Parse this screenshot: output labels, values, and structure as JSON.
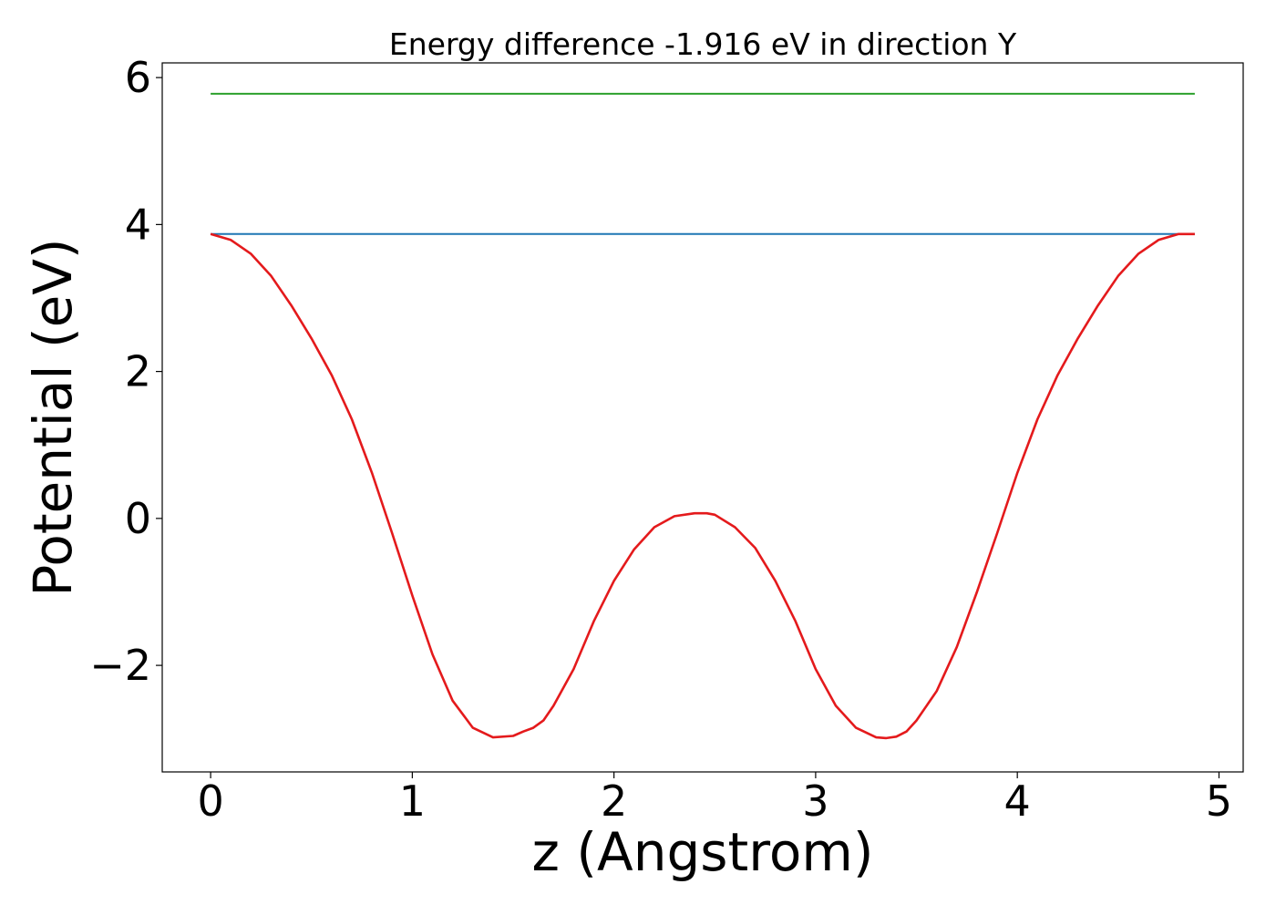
{
  "chart_data": {
    "type": "line",
    "title": "Energy difference -1.916 eV in direction Y",
    "xlabel": "z (Angstrom)",
    "ylabel": "Potential (eV)",
    "xlim": [
      -0.24,
      5.12
    ],
    "ylim": [
      -3.45,
      6.2
    ],
    "x_ticks": [
      0,
      1,
      2,
      3,
      4,
      5
    ],
    "x_tick_labels": [
      "0",
      "1",
      "2",
      "3",
      "4",
      "5"
    ],
    "y_ticks": [
      -2,
      0,
      2,
      4,
      6
    ],
    "y_tick_labels": [
      "−2",
      "0",
      "2",
      "4",
      "6"
    ],
    "grid": false,
    "legend": "none",
    "series": [
      {
        "color": "#e41a1c",
        "x": [
          0,
          0.1,
          0.2,
          0.3,
          0.4,
          0.5,
          0.6,
          0.7,
          0.8,
          0.9,
          1.0,
          1.1,
          1.2,
          1.3,
          1.4,
          1.5,
          1.55,
          1.6,
          1.65,
          1.7,
          1.8,
          1.9,
          2.0,
          2.1,
          2.2,
          2.3,
          2.4,
          2.46,
          2.5,
          2.6,
          2.7,
          2.8,
          2.9,
          3.0,
          3.1,
          3.2,
          3.3,
          3.35,
          3.4,
          3.45,
          3.5,
          3.6,
          3.7,
          3.8,
          3.9,
          4.0,
          4.1,
          4.2,
          4.3,
          4.4,
          4.5,
          4.6,
          4.7,
          4.8,
          4.88
        ],
        "y": [
          3.87,
          3.79,
          3.6,
          3.3,
          2.9,
          2.45,
          1.95,
          1.35,
          0.62,
          -0.2,
          -1.05,
          -1.85,
          -2.48,
          -2.85,
          -2.98,
          -2.96,
          -2.9,
          -2.85,
          -2.75,
          -2.55,
          -2.05,
          -1.4,
          -0.85,
          -0.42,
          -0.12,
          0.03,
          0.07,
          0.07,
          0.05,
          -0.12,
          -0.4,
          -0.85,
          -1.4,
          -2.05,
          -2.55,
          -2.85,
          -2.98,
          -2.99,
          -2.97,
          -2.9,
          -2.75,
          -2.35,
          -1.75,
          -1.0,
          -0.2,
          0.62,
          1.35,
          1.95,
          2.45,
          2.9,
          3.3,
          3.6,
          3.79,
          3.87,
          3.87
        ]
      },
      {
        "color": "#1f77b4",
        "x": [
          0,
          4.88
        ],
        "y": [
          3.87,
          3.87
        ]
      },
      {
        "color": "#2ca02c",
        "x": [
          0,
          4.88
        ],
        "y": [
          5.78,
          5.78
        ]
      }
    ]
  }
}
